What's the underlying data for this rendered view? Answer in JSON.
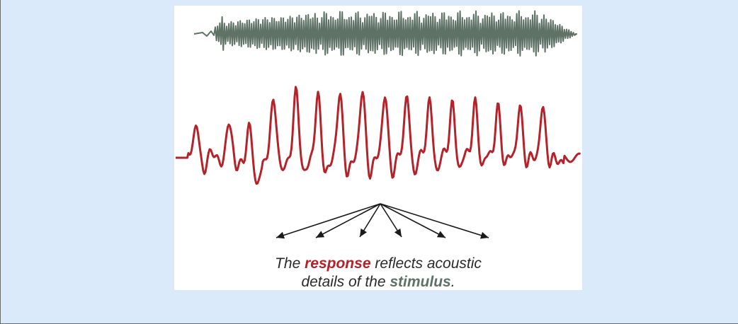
{
  "figure": {
    "stimulus_color": "#5f7266",
    "response_color": "#b5222a",
    "arrow_color": "#1a1a1a",
    "caption": {
      "part1": "The ",
      "response_word": "response",
      "part2": " reflects acoustic",
      "part3": "details of the ",
      "stimulus_word": "stimulus",
      "part4": "."
    }
  }
}
